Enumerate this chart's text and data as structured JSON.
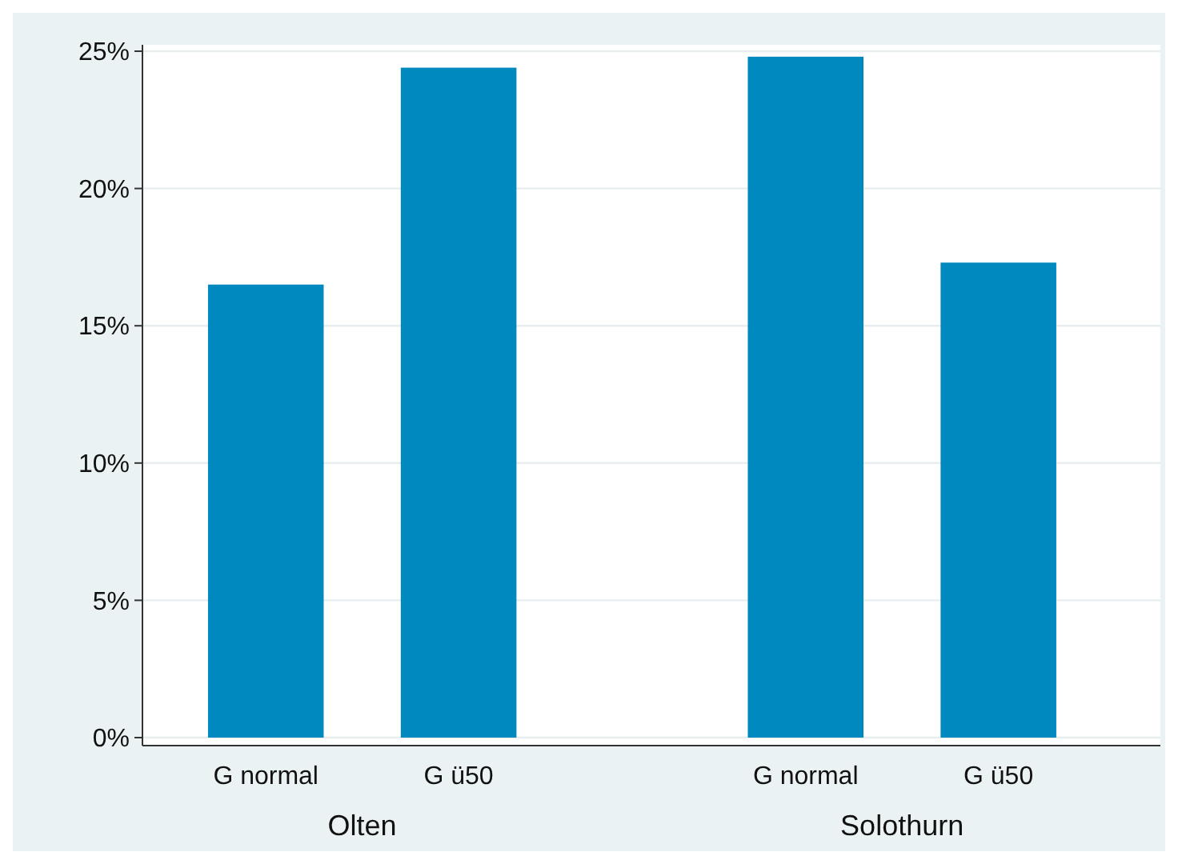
{
  "chart_data": {
    "type": "bar",
    "categories": [
      "G normal",
      "G ü50",
      "G normal",
      "G ü50"
    ],
    "values": [
      16.5,
      24.4,
      24.8,
      17.3
    ],
    "color": "#0089bf",
    "ylim": [
      0,
      25
    ],
    "yticks": [
      {
        "value": 0,
        "label": "0%"
      },
      {
        "value": 5,
        "label": "5%"
      },
      {
        "value": 10,
        "label": "10%"
      },
      {
        "value": 15,
        "label": "15%"
      },
      {
        "value": 20,
        "label": "20%"
      },
      {
        "value": 25,
        "label": "25%"
      }
    ],
    "grid": "y",
    "annotations": [
      "Olten",
      "Solothurn"
    ]
  }
}
